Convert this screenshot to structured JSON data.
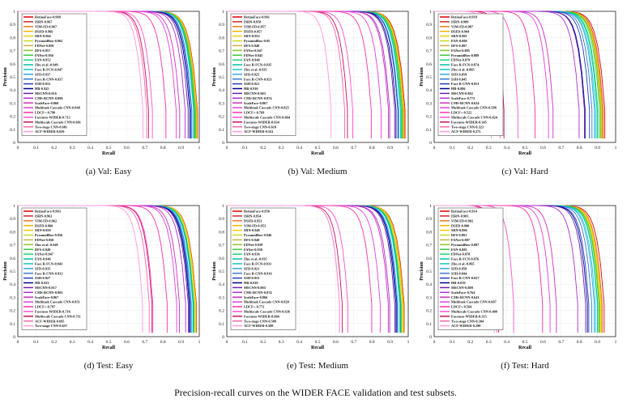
{
  "caption": "Precision-recall curves on the WIDER FACE validation and test subsets.",
  "colors": [
    "#e00000",
    "#cc2a2a",
    "#f07a1a",
    "#f4b400",
    "#f0d000",
    "#c8dc10",
    "#d0b040",
    "#8cc820",
    "#3cc83c",
    "#10d870",
    "#00c0a0",
    "#10c8c8",
    "#30a8e8",
    "#3a7ad8",
    "#2040c0",
    "#000090",
    "#7020b0",
    "#b030d0",
    "#d030c0",
    "#e040e0",
    "#ff30a0",
    "#ff50d0",
    "#c81060",
    "#ff66aa",
    "#ff99dd",
    "#e060ff",
    "#b050ff",
    "#ff0080"
  ],
  "axis": {
    "xlabel": "Recall",
    "ylabel": "Precision",
    "ticks": [
      "0",
      "0.1",
      "0.2",
      "0.3",
      "0.4",
      "0.5",
      "0.6",
      "0.7",
      "0.8",
      "0.9",
      "1"
    ]
  },
  "chart_data": [
    {
      "type": "line",
      "subcaption": "(a)  Val: Easy",
      "xlabel": "Recall",
      "ylabel": "Precision",
      "xlim": [
        0,
        1
      ],
      "ylim": [
        0,
        1
      ],
      "grid": true,
      "legend_position": "top-left",
      "series": [
        {
          "name": "RetinaFace-0.969",
          "ap": 0.969
        },
        {
          "name": "ISRN-0.967",
          "ap": 0.967
        },
        {
          "name": "VIM-FD-0.967",
          "ap": 0.967
        },
        {
          "name": "DSFD-0.966",
          "ap": 0.966
        },
        {
          "name": "SRN-0.964",
          "ap": 0.964
        },
        {
          "name": "PyramidBox-0.962",
          "ap": 0.962
        },
        {
          "name": "FDNet-0.959",
          "ap": 0.959
        },
        {
          "name": "DFS-0.957",
          "ap": 0.957
        },
        {
          "name": "FANet-0.956",
          "ap": 0.956
        },
        {
          "name": "FAN-0.952",
          "ap": 0.952
        },
        {
          "name": "Zhu et al.-0.949",
          "ap": 0.949
        },
        {
          "name": "Face R-FCN-0.947",
          "ap": 0.947
        },
        {
          "name": "SFD-0.937",
          "ap": 0.937
        },
        {
          "name": "Face R-CNN-0.937",
          "ap": 0.937
        },
        {
          "name": "SSH-0.931",
          "ap": 0.931
        },
        {
          "name": "HR-0.925",
          "ap": 0.925
        },
        {
          "name": "MSCNN-0.916",
          "ap": 0.916
        },
        {
          "name": "CMS-RCNN-0.899",
          "ap": 0.899
        },
        {
          "name": "ScaleFace-0.868",
          "ap": 0.868
        },
        {
          "name": "Multitask Cascade CNN-0.848",
          "ap": 0.848
        },
        {
          "name": "LDCF+-0.790",
          "ap": 0.79
        },
        {
          "name": "Faceness-WIDER-0.713",
          "ap": 0.713
        },
        {
          "name": "Multiscale Cascade CNN-0.691",
          "ap": 0.691
        },
        {
          "name": "Two-stage CNN-0.681",
          "ap": 0.681
        },
        {
          "name": "ACF-WIDER-0.659",
          "ap": 0.659
        }
      ]
    },
    {
      "type": "line",
      "subcaption": "(b)  Val: Medium",
      "xlabel": "Recall",
      "ylabel": "Precision",
      "xlim": [
        0,
        1
      ],
      "ylim": [
        0,
        1
      ],
      "grid": true,
      "legend_position": "top-left",
      "series": [
        {
          "name": "RetinaFace-0.961",
          "ap": 0.961
        },
        {
          "name": "ISRN-0.958",
          "ap": 0.958
        },
        {
          "name": "VIM-FD-0.957",
          "ap": 0.957
        },
        {
          "name": "DSFD-0.957",
          "ap": 0.957
        },
        {
          "name": "SRN-0.952",
          "ap": 0.952
        },
        {
          "name": "PyramidBox-0.95",
          "ap": 0.95
        },
        {
          "name": "DFS-0.948",
          "ap": 0.948
        },
        {
          "name": "FANet-0.947",
          "ap": 0.947
        },
        {
          "name": "FDNet-0.945",
          "ap": 0.945
        },
        {
          "name": "FAN-0.940",
          "ap": 0.94
        },
        {
          "name": "Face R-FCN-0.935",
          "ap": 0.935
        },
        {
          "name": "Zhu et al.-0.935",
          "ap": 0.935
        },
        {
          "name": "SFD-0.925",
          "ap": 0.925
        },
        {
          "name": "Face R-CNN-0.921",
          "ap": 0.921
        },
        {
          "name": "SSH-0.921",
          "ap": 0.921
        },
        {
          "name": "HR-0.910",
          "ap": 0.91
        },
        {
          "name": "MSCNN-0.903",
          "ap": 0.903
        },
        {
          "name": "CMS-RCNN-0.874",
          "ap": 0.874
        },
        {
          "name": "ScaleFace-0.867",
          "ap": 0.867
        },
        {
          "name": "Multitask Cascade CNN-0.825",
          "ap": 0.825
        },
        {
          "name": "LDCF+-0.769",
          "ap": 0.769
        },
        {
          "name": "Multiscale Cascade CNN-0.664",
          "ap": 0.664
        },
        {
          "name": "Faceness-WIDER-0.634",
          "ap": 0.634
        },
        {
          "name": "Two-stage CNN-0.618",
          "ap": 0.618
        },
        {
          "name": "ACF-WIDER-0.541",
          "ap": 0.541
        }
      ]
    },
    {
      "type": "line",
      "subcaption": "(c)  Val: Hard",
      "xlabel": "Recall",
      "ylabel": "Precision",
      "xlim": [
        0,
        1
      ],
      "ylim": [
        0,
        1
      ],
      "grid": true,
      "legend_position": "top-left",
      "series": [
        {
          "name": "RetinaFace-0.918",
          "ap": 0.918
        },
        {
          "name": "ISRN-0.909",
          "ap": 0.909
        },
        {
          "name": "VIM-FD-0.907",
          "ap": 0.907
        },
        {
          "name": "DSFD-0.904",
          "ap": 0.904
        },
        {
          "name": "SRN-0.901",
          "ap": 0.901
        },
        {
          "name": "FAN-0.900",
          "ap": 0.9
        },
        {
          "name": "DFS-0.897",
          "ap": 0.897
        },
        {
          "name": "FANet-0.895",
          "ap": 0.895
        },
        {
          "name": "PyramidBox-0.889",
          "ap": 0.889
        },
        {
          "name": "FDNet-0.879",
          "ap": 0.879
        },
        {
          "name": "Face R-FCN-0.874",
          "ap": 0.874
        },
        {
          "name": "Zhu et al.-0.865",
          "ap": 0.865
        },
        {
          "name": "SFD-0.859",
          "ap": 0.859
        },
        {
          "name": "SSH-0.845",
          "ap": 0.845
        },
        {
          "name": "Face R-CNN-0.831",
          "ap": 0.831
        },
        {
          "name": "HR-0.806",
          "ap": 0.806
        },
        {
          "name": "MSCNN-0.802",
          "ap": 0.802
        },
        {
          "name": "ScaleFace-0.772",
          "ap": 0.772
        },
        {
          "name": "CMS-RCNN-0.624",
          "ap": 0.624
        },
        {
          "name": "Multitask Cascade CNN-0.598",
          "ap": 0.598
        },
        {
          "name": "LDCF+-0.522",
          "ap": 0.522
        },
        {
          "name": "Multiscale Cascade CNN-0.424",
          "ap": 0.424
        },
        {
          "name": "Faceness-WIDER-0.345",
          "ap": 0.345
        },
        {
          "name": "Two-stage CNN-0.323",
          "ap": 0.323
        },
        {
          "name": "ACF-WIDER-0.273",
          "ap": 0.273
        }
      ]
    },
    {
      "type": "line",
      "subcaption": "(d)  Test: Easy",
      "xlabel": "Recall",
      "ylabel": "Precision",
      "xlim": [
        0,
        1
      ],
      "ylim": [
        0,
        1
      ],
      "grid": true,
      "legend_position": "top-left",
      "series": [
        {
          "name": "RetinaFace-0.963",
          "ap": 0.963
        },
        {
          "name": "ISRN-0.963",
          "ap": 0.963
        },
        {
          "name": "VIM-FD-0.962",
          "ap": 0.962
        },
        {
          "name": "DSFD-0.960",
          "ap": 0.96
        },
        {
          "name": "SRN-0.959",
          "ap": 0.959
        },
        {
          "name": "PyramidBox-0.956",
          "ap": 0.956
        },
        {
          "name": "FDNet-0.950",
          "ap": 0.95
        },
        {
          "name": "Zhu et al.-0.949",
          "ap": 0.949
        },
        {
          "name": "DFS-0.949",
          "ap": 0.949
        },
        {
          "name": "FANet-0.947",
          "ap": 0.947
        },
        {
          "name": "FAN-0.946",
          "ap": 0.946
        },
        {
          "name": "Face R-FCN-0.943",
          "ap": 0.943
        },
        {
          "name": "SFD-0.935",
          "ap": 0.935
        },
        {
          "name": "Face R-CNN-0.932",
          "ap": 0.932
        },
        {
          "name": "SSH-0.927",
          "ap": 0.927
        },
        {
          "name": "HR-0.923",
          "ap": 0.923
        },
        {
          "name": "MSCNN-0.917",
          "ap": 0.917
        },
        {
          "name": "CMS-RCNN-0.902",
          "ap": 0.902
        },
        {
          "name": "ScaleFace-0.867",
          "ap": 0.867
        },
        {
          "name": "Multitask Cascade CNN-0.851",
          "ap": 0.851
        },
        {
          "name": "LDCF+-0.797",
          "ap": 0.797
        },
        {
          "name": "Faceness-WIDER-0.716",
          "ap": 0.716
        },
        {
          "name": "Multiscale Cascade CNN-0.711",
          "ap": 0.711
        },
        {
          "name": "ACF-WIDER-0.695",
          "ap": 0.695
        },
        {
          "name": "Two-stage CNN-0.657",
          "ap": 0.657
        }
      ]
    },
    {
      "type": "line",
      "subcaption": "(e)  Test: Medium",
      "xlabel": "Recall",
      "ylabel": "Precision",
      "xlim": [
        0,
        1
      ],
      "ylim": [
        0,
        1
      ],
      "grid": true,
      "legend_position": "top-left",
      "series": [
        {
          "name": "RetinaFace-0.956",
          "ap": 0.956
        },
        {
          "name": "ISRN-0.954",
          "ap": 0.954
        },
        {
          "name": "DSFD-0.953",
          "ap": 0.953
        },
        {
          "name": "VIM-FD-0.953",
          "ap": 0.953
        },
        {
          "name": "SRN-0.948",
          "ap": 0.948
        },
        {
          "name": "PyramidBox-0.946",
          "ap": 0.946
        },
        {
          "name": "DFS-0.940",
          "ap": 0.94
        },
        {
          "name": "FDNet-0.939",
          "ap": 0.939
        },
        {
          "name": "FANet-0.939",
          "ap": 0.939
        },
        {
          "name": "FAN-0.936",
          "ap": 0.936
        },
        {
          "name": "Zhu et al.-0.935",
          "ap": 0.935
        },
        {
          "name": "Face R-FCN-0.931",
          "ap": 0.931
        },
        {
          "name": "SFD-0.921",
          "ap": 0.921
        },
        {
          "name": "Face R-CNN-0.916",
          "ap": 0.916
        },
        {
          "name": "SSH-0.915",
          "ap": 0.915
        },
        {
          "name": "HR-0.910",
          "ap": 0.91
        },
        {
          "name": "MSCNN-0.903",
          "ap": 0.903
        },
        {
          "name": "CMS-RCNN-0.874",
          "ap": 0.874
        },
        {
          "name": "ScaleFace-0.866",
          "ap": 0.866
        },
        {
          "name": "Multitask Cascade CNN-0.820",
          "ap": 0.82
        },
        {
          "name": "LDCF+-0.772",
          "ap": 0.772
        },
        {
          "name": "Multiscale Cascade CNN-0.636",
          "ap": 0.636
        },
        {
          "name": "Faceness-WIDER-0.604",
          "ap": 0.604
        },
        {
          "name": "Two-stage CNN-0.589",
          "ap": 0.589
        },
        {
          "name": "ACF-WIDER-0.588",
          "ap": 0.588
        }
      ]
    },
    {
      "type": "line",
      "subcaption": "(f)  Test: Hard",
      "xlabel": "Recall",
      "ylabel": "Precision",
      "xlim": [
        0,
        1
      ],
      "ylim": [
        0,
        1
      ],
      "grid": true,
      "legend_position": "top-left",
      "series": [
        {
          "name": "RetinaFace-0.914",
          "ap": 0.914
        },
        {
          "name": "ISRN-0.903",
          "ap": 0.903
        },
        {
          "name": "VIM-FD-0.902",
          "ap": 0.902
        },
        {
          "name": "DSFD-0.900",
          "ap": 0.9
        },
        {
          "name": "SRN-0.896",
          "ap": 0.896
        },
        {
          "name": "DFS-0.891",
          "ap": 0.891
        },
        {
          "name": "FANet-0.887",
          "ap": 0.887
        },
        {
          "name": "PyramidBox-0.887",
          "ap": 0.887
        },
        {
          "name": "FAN-0.885",
          "ap": 0.885
        },
        {
          "name": "FDNet-0.878",
          "ap": 0.878
        },
        {
          "name": "Face R-FCN-0.876",
          "ap": 0.876
        },
        {
          "name": "Zhu et al.-0.865",
          "ap": 0.865
        },
        {
          "name": "SFD-0.858",
          "ap": 0.858
        },
        {
          "name": "SSH-0.844",
          "ap": 0.844
        },
        {
          "name": "Face R-CNN-0.827",
          "ap": 0.827
        },
        {
          "name": "HR-0.819",
          "ap": 0.819
        },
        {
          "name": "MSCNN-0.809",
          "ap": 0.809
        },
        {
          "name": "ScaleFace-0.764",
          "ap": 0.764
        },
        {
          "name": "CMS-RCNN-0.643",
          "ap": 0.643
        },
        {
          "name": "Multitask Cascade CNN-0.607",
          "ap": 0.607
        },
        {
          "name": "LDCF+-0.564",
          "ap": 0.564
        },
        {
          "name": "Multiscale Cascade CNN-0.400",
          "ap": 0.4
        },
        {
          "name": "Faceness-WIDER-0.315",
          "ap": 0.315
        },
        {
          "name": "Two-stage CNN-0.304",
          "ap": 0.304
        },
        {
          "name": "ACF-WIDER-0.290",
          "ap": 0.29
        }
      ]
    }
  ]
}
